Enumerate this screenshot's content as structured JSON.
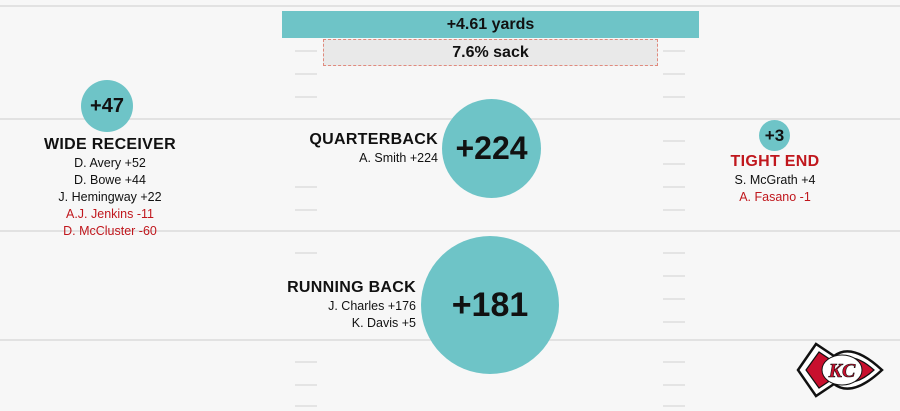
{
  "summary": {
    "yards_label": "+4.61 yards",
    "sack_label": "7.6% sack"
  },
  "positions": {
    "wide_receiver": {
      "title": "WIDE RECEIVER",
      "total": "+47",
      "players": [
        {
          "text": "D. Avery +52",
          "negative": false
        },
        {
          "text": "D. Bowe +44",
          "negative": false
        },
        {
          "text": "J. Hemingway +22",
          "negative": false
        },
        {
          "text": "A.J. Jenkins -11",
          "negative": true
        },
        {
          "text": "D. McCluster -60",
          "negative": true
        }
      ]
    },
    "quarterback": {
      "title": "QUARTERBACK",
      "total": "+224",
      "players": [
        {
          "text": "A. Smith +224",
          "negative": false
        }
      ]
    },
    "running_back": {
      "title": "RUNNING BACK",
      "total": "+181",
      "players": [
        {
          "text": "J. Charles +176",
          "negative": false
        },
        {
          "text": "K. Davis +5",
          "negative": false
        }
      ]
    },
    "tight_end": {
      "title": "TIGHT END",
      "total": "+3",
      "players": [
        {
          "text": "S. McGrath +4",
          "negative": false
        },
        {
          "text": "A. Fasano -1",
          "negative": true
        }
      ]
    }
  },
  "colors": {
    "circle": "#6ec4c7",
    "negative": "#c0171d",
    "field_line": "#e2e2e2"
  },
  "logo": {
    "icon": "chiefs-arrowhead-logo",
    "text": "KC"
  }
}
